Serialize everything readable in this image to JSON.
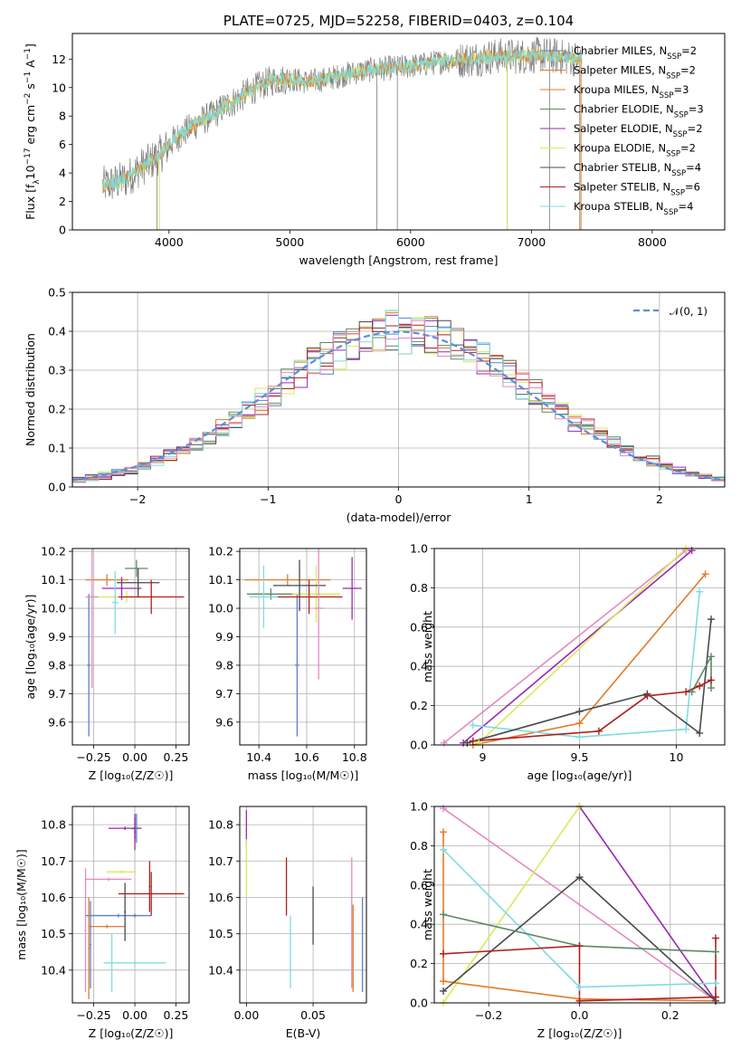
{
  "colors": {
    "blue": "#5b7ecf",
    "orange": "#e07b2a",
    "green": "#5c8a63",
    "purple": "#9a27b0",
    "yellow": "#d8ea5a",
    "darkgray": "#4a4a4a",
    "red": "#b01f1f",
    "cyan": "#80dbe2",
    "pink": "#e28bc2"
  },
  "chart_data": [
    {
      "name": "spectrum",
      "type": "line",
      "title": "PLATE=0725, MJD=52258, FIBERID=0403, z=0.104",
      "xlabel": "wavelength [Angstrom, rest frame]",
      "ylabel": "Flux [f$_λ$10$^{-17}$ erg cm$^{-2}$ s$^{-1}$ A$^{-1}$]",
      "ylabel_parts": [
        "Flux [f",
        "λ",
        "10",
        "−17",
        " erg cm",
        "−2",
        " s",
        "−1",
        " A",
        "−1",
        "]"
      ],
      "xlim": [
        3200,
        8600
      ],
      "ylim": [
        0,
        13.8
      ],
      "xticks": [
        4000,
        5000,
        6000,
        7000,
        8000
      ],
      "yticks": [
        0,
        2,
        4,
        6,
        8,
        10,
        12
      ],
      "legend_position": "right",
      "legend": [
        {
          "label": "Chabrier MILES, N",
          "sub": "SSP",
          "tail": "=2",
          "color": "blue"
        },
        {
          "label": "Salpeter MILES, N",
          "sub": "SSP",
          "tail": "=2",
          "color": "orange"
        },
        {
          "label": "Kroupa MILES, N",
          "sub": "SSP",
          "tail": "=3",
          "color": "orange"
        },
        {
          "label": "Chabrier ELODIE, N",
          "sub": "SSP",
          "tail": "=3",
          "color": "green"
        },
        {
          "label": "Salpeter ELODIE, N",
          "sub": "SSP",
          "tail": "=2",
          "color": "purple"
        },
        {
          "label": "Kroupa ELODIE, N",
          "sub": "SSP",
          "tail": "=2",
          "color": "yellow"
        },
        {
          "label": "Chabrier STELIB, N",
          "sub": "SSP",
          "tail": "=4",
          "color": "darkgray"
        },
        {
          "label": "Salpeter STELIB, N",
          "sub": "SSP",
          "tail": "=6",
          "color": "red"
        },
        {
          "label": "Kroupa STELIB, N",
          "sub": "SSP",
          "tail": "=4",
          "color": "cyan"
        }
      ],
      "continuum": [
        [
          3450,
          3.1
        ],
        [
          3550,
          3.3
        ],
        [
          3650,
          3.6
        ],
        [
          3750,
          4.3
        ],
        [
          3850,
          4.8
        ],
        [
          3950,
          5.5
        ],
        [
          4050,
          6.4
        ],
        [
          4150,
          7.0
        ],
        [
          4250,
          7.6
        ],
        [
          4350,
          8.0
        ],
        [
          4450,
          8.6
        ],
        [
          4550,
          9.1
        ],
        [
          4700,
          9.9
        ],
        [
          4850,
          10.5
        ],
        [
          5000,
          10.6
        ],
        [
          5150,
          10.4
        ],
        [
          5300,
          10.6
        ],
        [
          5500,
          11.0
        ],
        [
          5700,
          11.3
        ],
        [
          5900,
          11.4
        ],
        [
          6100,
          11.6
        ],
        [
          6300,
          11.9
        ],
        [
          6500,
          12.0
        ],
        [
          6700,
          12.2
        ],
        [
          6900,
          12.2
        ],
        [
          7100,
          12.3
        ],
        [
          7300,
          12.1
        ],
        [
          7420,
          12.0
        ]
      ],
      "model_xrange": [
        3450,
        7420
      ],
      "spikes": [
        3900,
        5720,
        5890,
        6800,
        7150,
        7400
      ],
      "colored_spikes": [
        [
          3920,
          "yellow"
        ],
        [
          6800,
          "yellow"
        ],
        [
          7410,
          "orange"
        ]
      ]
    },
    {
      "name": "residuals",
      "type": "histogram",
      "xlabel": "(data-model)/error",
      "ylabel": "Normed distribution",
      "xlim": [
        -2.5,
        2.5
      ],
      "ylim": [
        0,
        0.5
      ],
      "xticks": [
        -2,
        -1,
        0,
        1,
        2
      ],
      "yticks": [
        0.0,
        0.1,
        0.2,
        0.3,
        0.4,
        0.5
      ],
      "legend": "𝒩(0, 1)",
      "legend_position": "upper right",
      "bin_width": 0.1
    },
    {
      "name": "age-vs-Z",
      "type": "errorbar",
      "xlabel": "Z [log₁₀(Z/Z☉)]",
      "ylabel": "age  [log₁₀(age/yr)]",
      "xlim": [
        -0.38,
        0.33
      ],
      "ylim": [
        9.52,
        10.21
      ],
      "xticks": [
        -0.25,
        0.0,
        0.25
      ],
      "xticklabels": [
        "−0.25",
        "0.00",
        "0.25"
      ],
      "yticks": [
        9.6,
        9.7,
        9.8,
        9.9,
        10.0,
        10.1,
        10.2
      ],
      "points": [
        {
          "x": -0.28,
          "y": 9.8,
          "xerr": 0.01,
          "yerr": 0.25,
          "color": "blue"
        },
        {
          "x": -0.17,
          "y": 10.1,
          "xerr": 0.13,
          "yerr": 0.02,
          "color": "orange"
        },
        {
          "x": 0.01,
          "y": 10.14,
          "xerr": 0.07,
          "yerr": 0.03,
          "color": "green"
        },
        {
          "x": -0.08,
          "y": 10.07,
          "xerr": 0.12,
          "yerr": 0.04,
          "color": "purple"
        },
        {
          "x": -0.05,
          "y": 10.04,
          "xerr": 0.17,
          "yerr": 0.02,
          "color": "yellow"
        },
        {
          "x": 0.02,
          "y": 10.09,
          "xerr": 0.13,
          "yerr": 0.05,
          "color": "darkgray"
        },
        {
          "x": 0.1,
          "y": 10.04,
          "xerr": 0.2,
          "yerr": 0.06,
          "color": "red"
        },
        {
          "x": -0.12,
          "y": 10.02,
          "xerr": 0.02,
          "yerr": 0.11,
          "color": "cyan"
        },
        {
          "x": -0.26,
          "y": 10.04,
          "xerr": 0.04,
          "yerr": 0.32,
          "color": "pink"
        }
      ]
    },
    {
      "name": "age-vs-mass",
      "type": "errorbar",
      "xlabel": "mass [log₁₀(M/M☉)]",
      "ylabel": "",
      "xlim": [
        10.32,
        10.85
      ],
      "ylim": [
        9.52,
        10.21
      ],
      "xticks": [
        10.4,
        10.6,
        10.8
      ],
      "yticks": [
        9.6,
        9.7,
        9.8,
        9.9,
        10.0,
        10.1,
        10.2
      ],
      "points": [
        {
          "x": 10.56,
          "y": 9.8,
          "xerr": 0.01,
          "yerr": 0.25,
          "color": "blue"
        },
        {
          "x": 10.52,
          "y": 10.1,
          "xerr": 0.18,
          "yerr": 0.02,
          "color": "orange"
        },
        {
          "x": 10.45,
          "y": 10.05,
          "xerr": 0.1,
          "yerr": 0.02,
          "color": "green"
        },
        {
          "x": 10.79,
          "y": 10.07,
          "xerr": 0.04,
          "yerr": 0.11,
          "color": "purple"
        },
        {
          "x": 10.64,
          "y": 10.05,
          "xerr": 0.1,
          "yerr": 0.1,
          "color": "yellow"
        },
        {
          "x": 10.57,
          "y": 10.08,
          "xerr": 0.11,
          "yerr": 0.09,
          "color": "darkgray"
        },
        {
          "x": 10.61,
          "y": 10.04,
          "xerr": 0.14,
          "yerr": 0.06,
          "color": "red"
        },
        {
          "x": 10.42,
          "y": 10.04,
          "xerr": 0.06,
          "yerr": 0.11,
          "color": "cyan"
        },
        {
          "x": 10.65,
          "y": 10.0,
          "xerr": 0.02,
          "yerr": 0.25,
          "color": "pink"
        }
      ]
    },
    {
      "name": "mass-weight-vs-age",
      "type": "line",
      "xlabel": "age  [log₁₀(age/yr)]",
      "ylabel": "mass weight",
      "xlim": [
        8.75,
        10.25
      ],
      "ylim": [
        0,
        1
      ],
      "xticks": [
        9.0,
        9.5,
        10.0
      ],
      "yticks": [
        0.0,
        0.2,
        0.4,
        0.6,
        0.8,
        1.0
      ],
      "series": [
        {
          "color": "pink",
          "points": [
            [
              8.8,
              0.01
            ],
            [
              10.05,
              0.99
            ]
          ]
        },
        {
          "color": "purple",
          "points": [
            [
              8.9,
              0.01
            ],
            [
              10.08,
              0.99
            ]
          ]
        },
        {
          "color": "yellow",
          "points": [
            [
              8.98,
              0.01
            ],
            [
              10.05,
              1.0
            ]
          ]
        },
        {
          "color": "orange",
          "points": [
            [
              8.95,
              0.0
            ],
            [
              9.5,
              0.11
            ],
            [
              10.15,
              0.87
            ]
          ]
        },
        {
          "color": "cyan",
          "points": [
            [
              8.95,
              0.1
            ],
            [
              9.5,
              0.04
            ],
            [
              10.05,
              0.08
            ],
            [
              10.12,
              0.78
            ]
          ]
        },
        {
          "color": "darkgray",
          "points": [
            [
              8.92,
              0.01
            ],
            [
              9.5,
              0.17
            ],
            [
              9.85,
              0.26
            ],
            [
              10.12,
              0.06
            ],
            [
              10.18,
              0.64
            ]
          ]
        },
        {
          "color": "green",
          "points": [
            [
              10.08,
              0.27
            ],
            [
              10.18,
              0.45
            ],
            [
              10.18,
              0.29
            ]
          ]
        },
        {
          "color": "red",
          "points": [
            [
              8.95,
              0.02
            ],
            [
              9.6,
              0.07
            ],
            [
              9.85,
              0.25
            ],
            [
              10.05,
              0.27
            ],
            [
              10.12,
              0.3
            ],
            [
              10.18,
              0.33
            ]
          ]
        }
      ]
    },
    {
      "name": "mass-vs-Z",
      "type": "errorbar",
      "xlabel": "Z [log₁₀(Z/Z☉)]",
      "ylabel": "mass [log₁₀(M/M☉)]",
      "xlim": [
        -0.38,
        0.33
      ],
      "ylim": [
        10.31,
        10.85
      ],
      "xticks": [
        -0.25,
        0.0,
        0.25
      ],
      "xticklabels": [
        "−0.25",
        "0.00",
        "0.25"
      ],
      "yticks": [
        10.4,
        10.5,
        10.6,
        10.7,
        10.8
      ],
      "points": [
        {
          "x": -0.1,
          "y": 10.55,
          "xerr": 0.2,
          "yerr": 0.005,
          "color": "blue"
        },
        {
          "x": -0.17,
          "y": 10.52,
          "xerr": 0.11,
          "yerr": 0.005,
          "color": "orange"
        },
        {
          "x": 0.0,
          "y": 10.55,
          "xerr": 0.005,
          "yerr": 0.005,
          "color": "green"
        },
        {
          "x": -0.06,
          "y": 10.79,
          "xerr": 0.1,
          "yerr": 0.005,
          "color": "purple"
        },
        {
          "x": -0.08,
          "y": 10.67,
          "xerr": 0.09,
          "yerr": 0.005,
          "color": "yellow"
        },
        {
          "x": 0.0,
          "y": 10.79,
          "xerr": 0.02,
          "yerr": 0.03,
          "color": "darkgray"
        },
        {
          "x": 0.1,
          "y": 10.61,
          "xerr": 0.2,
          "yerr": 0.06,
          "color": "red"
        },
        {
          "x": 0.0,
          "y": 10.42,
          "xerr": 0.19,
          "yerr": 0.005,
          "color": "cyan"
        },
        {
          "x": -0.16,
          "y": 10.65,
          "xerr": 0.14,
          "yerr": 0.005,
          "color": "pink"
        },
        {
          "x": -0.3,
          "y": 10.51,
          "xerr": 0.005,
          "yerr": 0.17,
          "color": "pink"
        },
        {
          "x": -0.27,
          "y": 10.47,
          "xerr": 0.005,
          "yerr": 0.12,
          "color": "blue"
        },
        {
          "x": -0.28,
          "y": 10.46,
          "xerr": 0.005,
          "yerr": 0.14,
          "color": "orange"
        },
        {
          "x": -0.14,
          "y": 10.42,
          "xerr": 0.005,
          "yerr": 0.08,
          "color": "cyan"
        },
        {
          "x": -0.06,
          "y": 10.56,
          "xerr": 0.005,
          "yerr": 0.08,
          "color": "darkgray"
        },
        {
          "x": 0.0,
          "y": 10.78,
          "xerr": 0.005,
          "yerr": 0.05,
          "color": "purple"
        },
        {
          "x": 0.09,
          "y": 10.63,
          "xerr": 0.005,
          "yerr": 0.07,
          "color": "red"
        },
        {
          "x": 0.01,
          "y": 10.79,
          "xerr": 0.005,
          "yerr": 0.04,
          "color": "blue"
        }
      ]
    },
    {
      "name": "mass-vs-EBV",
      "type": "errorbar",
      "xlabel": "E(B-V)",
      "ylabel": "",
      "xlim": [
        -0.005,
        0.09
      ],
      "ylim": [
        10.31,
        10.85
      ],
      "xticks": [
        0.0,
        0.05
      ],
      "xticklabels": [
        "0.00",
        "0.05"
      ],
      "yticks": [
        10.4,
        10.5,
        10.6,
        10.7,
        10.8
      ],
      "points": [
        {
          "x": 0.0,
          "y": 10.79,
          "yerr": 0.05,
          "color": "purple"
        },
        {
          "x": 0.0,
          "y": 10.68,
          "yerr": 0.08,
          "color": "yellow"
        },
        {
          "x": 0.03,
          "y": 10.63,
          "yerr": 0.08,
          "color": "red"
        },
        {
          "x": 0.033,
          "y": 10.45,
          "yerr": 0.1,
          "color": "cyan"
        },
        {
          "x": 0.05,
          "y": 10.55,
          "yerr": 0.08,
          "color": "darkgray"
        },
        {
          "x": 0.079,
          "y": 10.53,
          "yerr": 0.18,
          "color": "pink"
        },
        {
          "x": 0.08,
          "y": 10.46,
          "yerr": 0.12,
          "color": "orange"
        },
        {
          "x": 0.087,
          "y": 10.47,
          "yerr": 0.13,
          "color": "blue"
        }
      ]
    },
    {
      "name": "mass-weight-vs-Z",
      "type": "line",
      "xlabel": "Z [log₁₀(Z/Z☉)]",
      "ylabel": "mass weight",
      "xlim": [
        -0.32,
        0.32
      ],
      "ylim": [
        0,
        1
      ],
      "xticks": [
        -0.2,
        0.0,
        0.2
      ],
      "xticklabels": [
        "−0.2",
        "0.0",
        "0.2"
      ],
      "yticks": [
        0.0,
        0.2,
        0.4,
        0.6,
        0.8,
        1.0
      ],
      "series": [
        {
          "color": "pink",
          "points": [
            [
              -0.3,
              0.99
            ],
            [
              0.3,
              0.01
            ]
          ]
        },
        {
          "color": "purple",
          "points": [
            [
              0.0,
              1.0
            ],
            [
              0.3,
              0.01
            ]
          ]
        },
        {
          "color": "yellow",
          "points": [
            [
              -0.3,
              0.0
            ],
            [
              0.0,
              1.0
            ]
          ]
        },
        {
          "color": "orange",
          "points": [
            [
              -0.3,
              0.87
            ],
            [
              -0.3,
              0.11
            ],
            [
              0.0,
              0.02
            ],
            [
              0.3,
              0.01
            ]
          ]
        },
        {
          "color": "cyan",
          "points": [
            [
              -0.3,
              0.78
            ],
            [
              0.0,
              0.08
            ],
            [
              0.3,
              0.1
            ]
          ]
        },
        {
          "color": "darkgray",
          "points": [
            [
              -0.3,
              0.06
            ],
            [
              0.0,
              0.64
            ],
            [
              0.3,
              0.01
            ]
          ]
        },
        {
          "color": "green",
          "points": [
            [
              -0.3,
              0.45
            ],
            [
              0.0,
              0.29
            ],
            [
              0.3,
              0.26
            ]
          ]
        },
        {
          "color": "red",
          "points": [
            [
              -0.3,
              0.25
            ],
            [
              0.0,
              0.29
            ],
            [
              0.0,
              0.01
            ],
            [
              0.3,
              0.03
            ],
            [
              0.3,
              0.33
            ]
          ]
        }
      ]
    }
  ]
}
